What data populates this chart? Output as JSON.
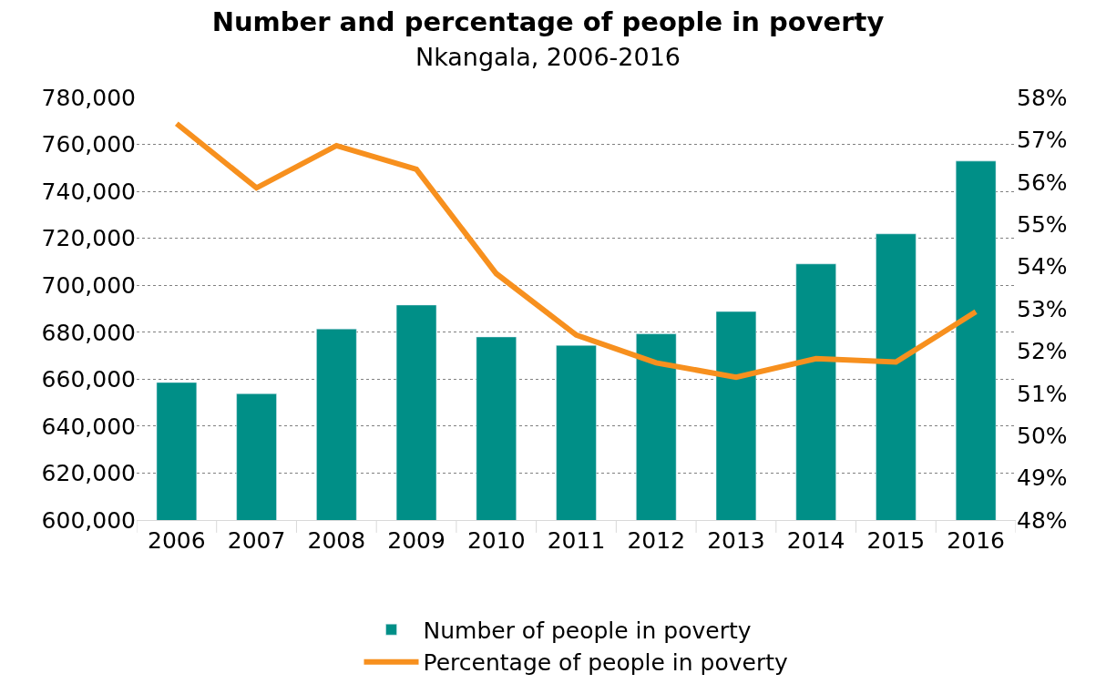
{
  "chart_data": {
    "type": "bar",
    "title": "Number and percentage of people in poverty",
    "subtitle": "Nkangala, 2006-2016",
    "categories": [
      "2006",
      "2007",
      "2008",
      "2009",
      "2010",
      "2011",
      "2012",
      "2013",
      "2014",
      "2015",
      "2016"
    ],
    "series": [
      {
        "name": "Number of people in poverty",
        "color": "#008f87",
        "values": [
          658600,
          653800,
          681400,
          691600,
          678000,
          674400,
          679300,
          688800,
          709100,
          721900,
          752900
        ]
      },
      {
        "name": "Percentage of people in poverty",
        "type": "line",
        "axis": "y2",
        "color": "#f7901e",
        "marker": "none",
        "line_style": "solid",
        "values": [
          57.38,
          55.86,
          56.86,
          56.3,
          53.83,
          52.38,
          51.72,
          51.38,
          51.82,
          51.74,
          52.93
        ]
      }
    ],
    "ylim": [
      600000,
      780000
    ],
    "yticks": [
      {
        "value": 600000,
        "label": "600,000"
      },
      {
        "value": 620000,
        "label": "620,000"
      },
      {
        "value": 640000,
        "label": "640,000"
      },
      {
        "value": 660000,
        "label": "660,000"
      },
      {
        "value": 680000,
        "label": "680,000"
      },
      {
        "value": 700000,
        "label": "700,000"
      },
      {
        "value": 720000,
        "label": "720,000"
      },
      {
        "value": 740000,
        "label": "740,000"
      },
      {
        "value": 760000,
        "label": "760,000"
      },
      {
        "value": 780000,
        "label": "780,000"
      }
    ],
    "y2lim": [
      48,
      58
    ],
    "y2ticks": [
      {
        "value": 48,
        "label": "48%"
      },
      {
        "value": 49,
        "label": "49%"
      },
      {
        "value": 50,
        "label": "50%"
      },
      {
        "value": 51,
        "label": "51%"
      },
      {
        "value": 52,
        "label": "52%"
      },
      {
        "value": 53,
        "label": "53%"
      },
      {
        "value": 54,
        "label": "54%"
      },
      {
        "value": 55,
        "label": "55%"
      },
      {
        "value": 56,
        "label": "56%"
      },
      {
        "value": 57,
        "label": "57%"
      },
      {
        "value": 58,
        "label": "58%"
      }
    ],
    "grid": "y",
    "legend": "bottom"
  }
}
